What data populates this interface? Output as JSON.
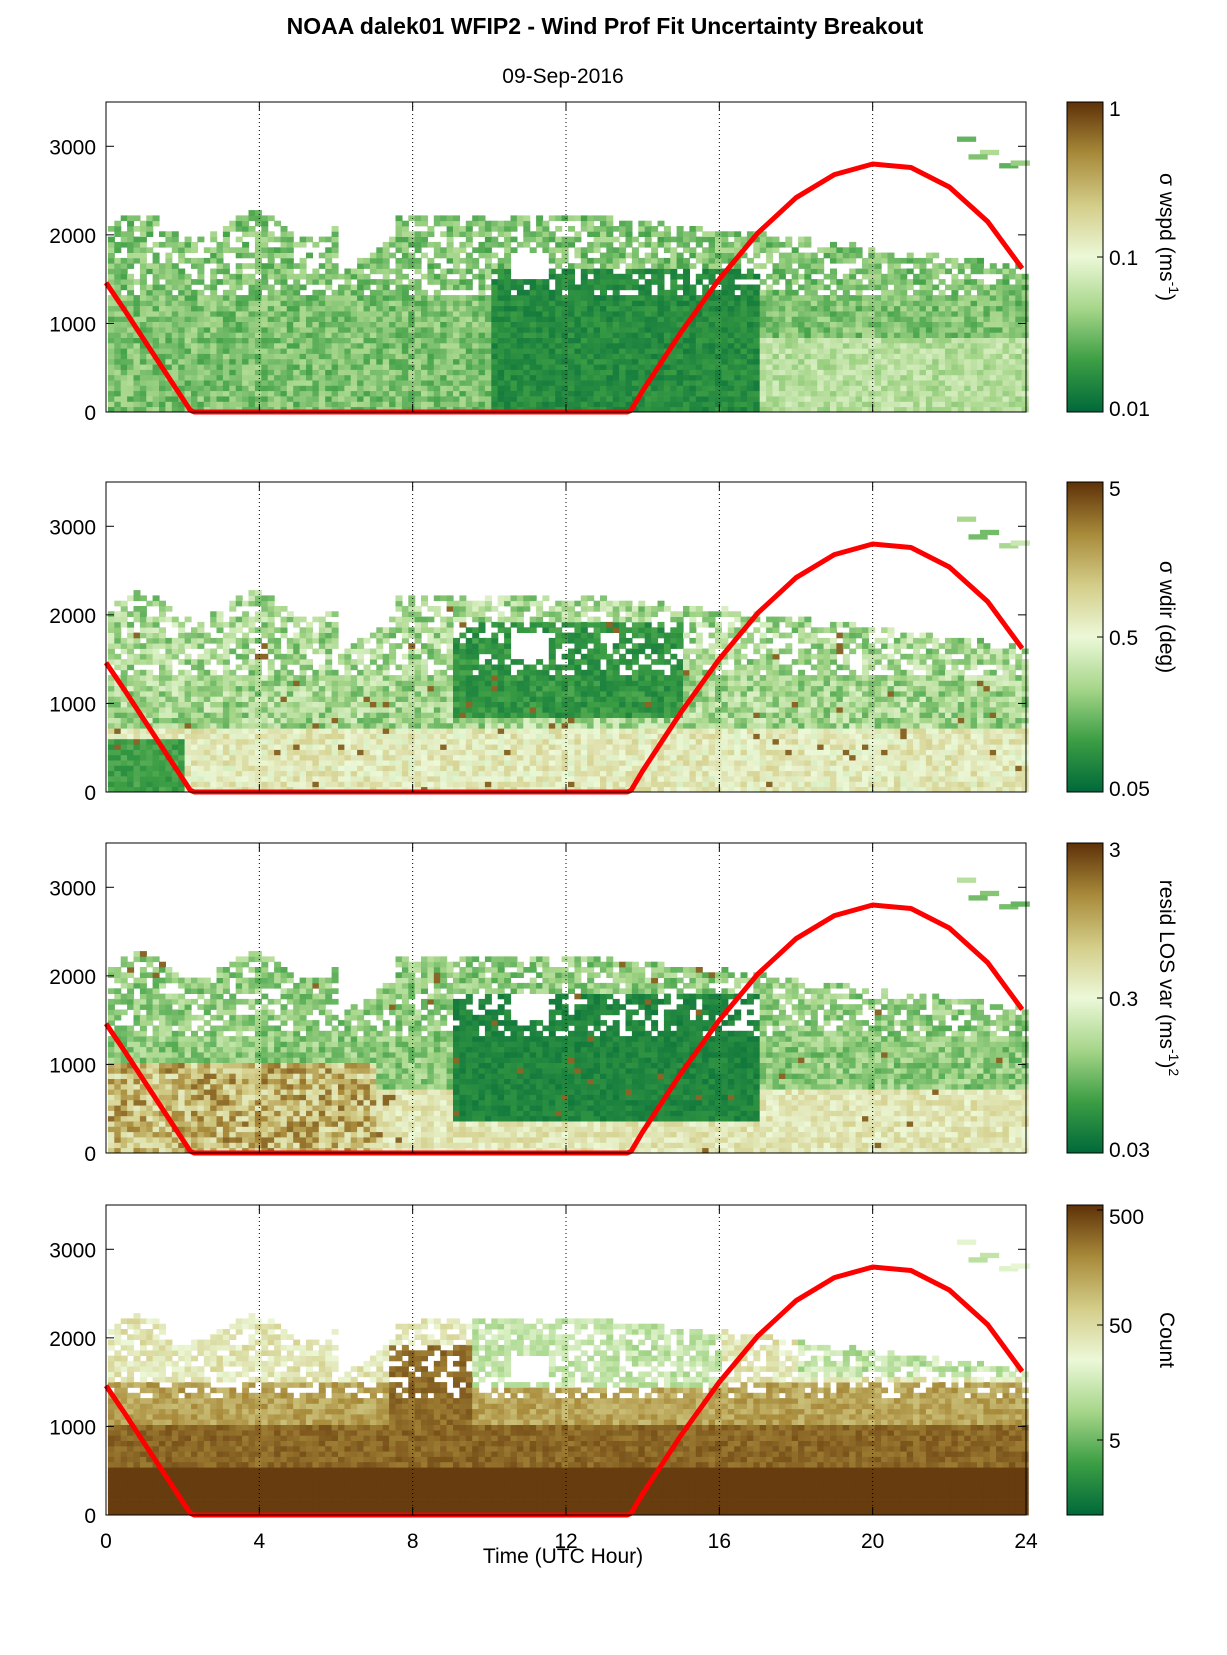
{
  "title": "NOAA dalek01 WFIP2 - Wind Prof Fit Uncertainty Breakout",
  "subtitle": "09-Sep-2016",
  "xlabel": "Time (UTC Hour)",
  "colors": {
    "sun_curve": "#ff0000",
    "colormap": [
      "#00693a",
      "#3c9e44",
      "#a6d68a",
      "#ecf8d8",
      "#d3cd88",
      "#a88a3a",
      "#5e3108"
    ]
  },
  "chart_data": [
    {
      "type": "heatmap",
      "name": "sigma-wspd",
      "colorbar_label": "σ wspd (ms",
      "colorbar_sup": "-1",
      "colorbar_tail": ")",
      "colorbar_scale": "log",
      "colorbar_range": [
        0.01,
        1
      ],
      "colorbar_ticks": [
        "1",
        "0.1",
        "0.01"
      ],
      "x_ticks": [
        "0",
        "4",
        "8",
        "12",
        "16",
        "20",
        "24"
      ],
      "y_ticks": [
        "0",
        "1000",
        "2000",
        "3000"
      ],
      "xlim": [
        0,
        24
      ],
      "ylim": [
        0,
        3500
      ],
      "grid": "vertical dotted at x ticks"
    },
    {
      "type": "heatmap",
      "name": "sigma-wdir",
      "colorbar_label": "σ wdir (deg)",
      "colorbar_sup": "",
      "colorbar_tail": "",
      "colorbar_scale": "log",
      "colorbar_range": [
        0.05,
        5
      ],
      "colorbar_ticks": [
        "5",
        "0.5",
        "0.05"
      ],
      "x_ticks": [
        "0",
        "4",
        "8",
        "12",
        "16",
        "20",
        "24"
      ],
      "y_ticks": [
        "0",
        "1000",
        "2000",
        "3000"
      ],
      "xlim": [
        0,
        24
      ],
      "ylim": [
        0,
        3500
      ],
      "grid": "vertical dotted at x ticks"
    },
    {
      "type": "heatmap",
      "name": "resid-los-var",
      "colorbar_label": "resid LOS var (ms",
      "colorbar_sup": "-1",
      "colorbar_tail": ")",
      "colorbar_sup2": "2",
      "colorbar_scale": "log",
      "colorbar_range": [
        0.03,
        3
      ],
      "colorbar_ticks": [
        "3",
        "0.3",
        "0.03"
      ],
      "x_ticks": [
        "0",
        "4",
        "8",
        "12",
        "16",
        "20",
        "24"
      ],
      "y_ticks": [
        "0",
        "1000",
        "2000",
        "3000"
      ],
      "xlim": [
        0,
        24
      ],
      "ylim": [
        0,
        3500
      ],
      "grid": "vertical dotted at x ticks"
    },
    {
      "type": "heatmap",
      "name": "count",
      "colorbar_label": "Count",
      "colorbar_sup": "",
      "colorbar_tail": "",
      "colorbar_scale": "log",
      "colorbar_range": [
        0.5,
        500
      ],
      "colorbar_ticks": [
        "500",
        "50",
        "5"
      ],
      "x_ticks": [
        "0",
        "4",
        "8",
        "12",
        "16",
        "20",
        "24"
      ],
      "y_ticks": [
        "0",
        "1000",
        "2000",
        "3000"
      ],
      "xlim": [
        0,
        24
      ],
      "ylim": [
        0,
        3500
      ],
      "grid": "vertical dotted at x ticks"
    }
  ],
  "sun_curve": {
    "x": [
      0,
      0.5,
      1.0,
      1.5,
      2.0,
      2.2,
      2.3,
      13.6,
      13.7,
      14,
      15,
      16,
      17,
      18,
      19,
      20,
      21,
      22,
      23,
      23.9
    ],
    "y": [
      1460,
      1140,
      810,
      480,
      150,
      20,
      0,
      0,
      20,
      240,
      900,
      1500,
      2020,
      2420,
      2680,
      2800,
      2760,
      2540,
      2150,
      1620
    ]
  }
}
